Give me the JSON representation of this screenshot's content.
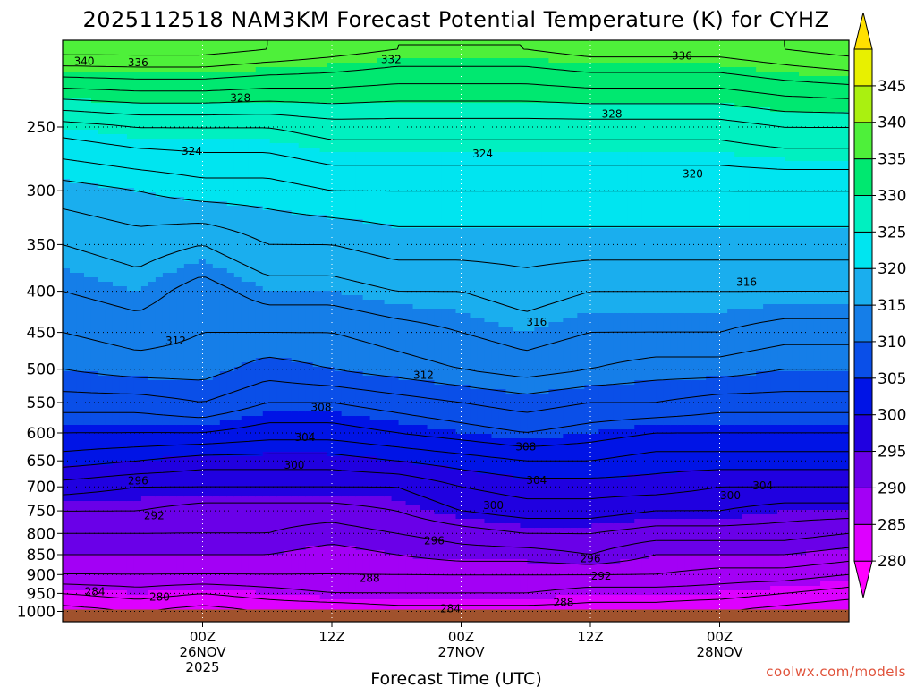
{
  "chart_data": {
    "type": "contour",
    "title": "2025112518 NAM3KM Forecast Potential Temperature (K) for CYHZ",
    "xlabel": "Forecast Time (UTC)",
    "ylabel": "",
    "y_axis": {
      "scale": "log",
      "inverted": true,
      "ticks": [
        250,
        300,
        350,
        400,
        450,
        500,
        550,
        600,
        650,
        700,
        750,
        800,
        850,
        900,
        950,
        1000
      ],
      "range": [
        195,
        1030
      ]
    },
    "x_axis": {
      "range_hours": [
        -7,
        66
      ],
      "ticks": [
        {
          "hour": 6,
          "lines": [
            "00Z",
            "26NOV",
            "2025"
          ]
        },
        {
          "hour": 18,
          "lines": [
            "12Z"
          ]
        },
        {
          "hour": 30,
          "lines": [
            "00Z",
            "27NOV"
          ]
        },
        {
          "hour": 42,
          "lines": [
            "12Z"
          ]
        },
        {
          "hour": 54,
          "lines": [
            "00Z",
            "28NOV"
          ]
        }
      ]
    },
    "grid": true,
    "colorbar": {
      "ticks": [
        345,
        340,
        335,
        330,
        325,
        320,
        315,
        310,
        305,
        300,
        295,
        290,
        285,
        280
      ],
      "bounds": [
        275,
        350
      ],
      "placement": "right"
    },
    "colors": {
      "ground": "#a0522d",
      "stops": [
        {
          "k": 275,
          "c": "#ff00ff"
        },
        {
          "k": 280,
          "c": "#dd00ff"
        },
        {
          "k": 285,
          "c": "#a300f5"
        },
        {
          "k": 290,
          "c": "#6a00e8"
        },
        {
          "k": 295,
          "c": "#2000e0"
        },
        {
          "k": 300,
          "c": "#0014e6"
        },
        {
          "k": 305,
          "c": "#0a4fe8"
        },
        {
          "k": 310,
          "c": "#157ee8"
        },
        {
          "k": 315,
          "c": "#1aaeee"
        },
        {
          "k": 320,
          "c": "#00e5f0"
        },
        {
          "k": 325,
          "c": "#00f0c0"
        },
        {
          "k": 330,
          "c": "#00e870"
        },
        {
          "k": 335,
          "c": "#4ef03a"
        },
        {
          "k": 340,
          "c": "#aaf010"
        },
        {
          "k": 345,
          "c": "#e8f000"
        },
        {
          "k": 350,
          "c": "#ffe000"
        }
      ]
    },
    "profile_pressure": [
      1000,
      950,
      900,
      850,
      800,
      750,
      700,
      650,
      600,
      550,
      500,
      450,
      400,
      350,
      300,
      250,
      200
    ],
    "profiles": [
      {
        "hour": -7,
        "theta": [
          281,
          284,
          288,
          290,
          292,
          294,
          297,
          301,
          304,
          307,
          310,
          312,
          314,
          316,
          319,
          325,
          339
        ]
      },
      {
        "hour": 0,
        "theta": [
          282,
          285,
          288,
          290,
          292,
          294,
          296,
          300,
          304,
          307,
          311,
          313,
          315,
          317,
          320,
          326,
          339
        ]
      },
      {
        "hour": 6,
        "theta": [
          281,
          284,
          288,
          290,
          292,
          293,
          296,
          299,
          304,
          308,
          311,
          312,
          313,
          316,
          321,
          326,
          339
        ]
      },
      {
        "hour": 12,
        "theta": [
          282,
          285,
          288,
          290,
          292,
          293,
          296,
          299,
          303,
          306,
          309,
          312,
          315,
          318,
          321,
          326,
          338
        ]
      },
      {
        "hour": 18,
        "theta": [
          282,
          286,
          288,
          289,
          291,
          293,
          296,
          299,
          303,
          306,
          310,
          312,
          315,
          318,
          322,
          327,
          337
        ]
      },
      {
        "hour": 24,
        "theta": [
          283,
          286,
          288,
          290,
          292,
          294,
          296,
          300,
          304,
          307,
          311,
          313,
          316,
          319,
          322,
          327,
          336
        ]
      },
      {
        "hour": 30,
        "theta": [
          283,
          286,
          288,
          291,
          293,
          296,
          298,
          301,
          305,
          308,
          312,
          314,
          316,
          319,
          322,
          327,
          336
        ]
      },
      {
        "hour": 36,
        "theta": [
          283,
          286,
          288,
          291,
          294,
          297,
          299,
          302,
          306,
          309,
          313,
          315,
          317,
          319,
          322,
          327,
          336
        ]
      },
      {
        "hour": 42,
        "theta": [
          283,
          285,
          288,
          292,
          294,
          297,
          299,
          302,
          305,
          308,
          312,
          314,
          316,
          319,
          322,
          327,
          337
        ]
      },
      {
        "hour": 48,
        "theta": [
          283,
          285,
          288,
          290,
          293,
          296,
          299,
          301,
          304,
          308,
          311,
          314,
          316,
          319,
          322,
          327,
          337
        ]
      },
      {
        "hour": 54,
        "theta": [
          282,
          285,
          287,
          290,
          293,
          296,
          298,
          301,
          304,
          307,
          311,
          314,
          316,
          319,
          322,
          327,
          337
        ]
      },
      {
        "hour": 60,
        "theta": [
          281,
          284,
          287,
          290,
          293,
          295,
          298,
          301,
          304,
          307,
          310,
          313,
          316,
          319,
          322,
          328,
          338
        ]
      },
      {
        "hour": 66,
        "theta": [
          280,
          283,
          286,
          289,
          292,
          295,
          298,
          301,
          304,
          307,
          310,
          313,
          316,
          319,
          322,
          328,
          339
        ]
      }
    ],
    "contour_labels": [
      {
        "text": "340",
        "hour": -5,
        "p": 207
      },
      {
        "text": "336",
        "hour": 0,
        "p": 208
      },
      {
        "text": "332",
        "hour": 23.5,
        "p": 206
      },
      {
        "text": "336",
        "hour": 50.5,
        "p": 204
      },
      {
        "text": "328",
        "hour": 9.5,
        "p": 230
      },
      {
        "text": "328",
        "hour": 44,
        "p": 241
      },
      {
        "text": "324",
        "hour": 5,
        "p": 268
      },
      {
        "text": "324",
        "hour": 32,
        "p": 270
      },
      {
        "text": "320",
        "hour": 51.5,
        "p": 286
      },
      {
        "text": "316",
        "hour": 56.5,
        "p": 390
      },
      {
        "text": "316",
        "hour": 37,
        "p": 437
      },
      {
        "text": "312",
        "hour": 3.5,
        "p": 461
      },
      {
        "text": "312",
        "hour": 26.5,
        "p": 509
      },
      {
        "text": "308",
        "hour": 17,
        "p": 558
      },
      {
        "text": "308",
        "hour": 36,
        "p": 624
      },
      {
        "text": "304",
        "hour": 15.5,
        "p": 608
      },
      {
        "text": "304",
        "hour": 37,
        "p": 687
      },
      {
        "text": "304",
        "hour": 58,
        "p": 698
      },
      {
        "text": "300",
        "hour": 14.5,
        "p": 658
      },
      {
        "text": "300",
        "hour": 33,
        "p": 738
      },
      {
        "text": "300",
        "hour": 55,
        "p": 718
      },
      {
        "text": "296",
        "hour": 0,
        "p": 688
      },
      {
        "text": "296",
        "hour": 27.5,
        "p": 817
      },
      {
        "text": "296",
        "hour": 42,
        "p": 860
      },
      {
        "text": "292",
        "hour": 1.5,
        "p": 760
      },
      {
        "text": "292",
        "hour": 43,
        "p": 904
      },
      {
        "text": "288",
        "hour": 21.5,
        "p": 910
      },
      {
        "text": "288",
        "hour": 39.5,
        "p": 975
      },
      {
        "text": "284",
        "hour": -4,
        "p": 945
      },
      {
        "text": "284",
        "hour": 29,
        "p": 992
      },
      {
        "text": "280",
        "hour": 2,
        "p": 960
      }
    ]
  },
  "credit": "coolwx.com/models"
}
